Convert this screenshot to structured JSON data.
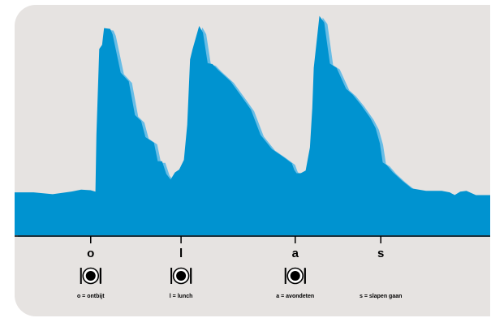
{
  "chart_data": {
    "type": "area",
    "title": "",
    "xlabel": "",
    "ylabel": "",
    "grid": false,
    "legend": "below axis",
    "colors": {
      "fill": "#0093d0",
      "shadow": "#68bde6",
      "axis": "#000000",
      "background": "#e6e3e1"
    },
    "x_range": [
      0,
      100
    ],
    "y_range": [
      0,
      100
    ],
    "series": [
      {
        "x": [
          0,
          4,
          8,
          12,
          14,
          16,
          17,
          17.2,
          17.8,
          18.4,
          18.8,
          20.1,
          20.6,
          22.3,
          23.8,
          24,
          25.3,
          26.6,
          27.5,
          29.3,
          30.1,
          31,
          31.9,
          32.8,
          33.7,
          34.6,
          35.6,
          36.3,
          36.9,
          37.4,
          38.8,
          39.6,
          40.6,
          41.6,
          42.8,
          45.4,
          47.7,
          49.7,
          51.7,
          54.1,
          56.4,
          58.3,
          58.8,
          59.3,
          60.2,
          61.2,
          62.1,
          62.6,
          62.9,
          64.1,
          65.1,
          66.3,
          67.7,
          69.7,
          71.1,
          72.8,
          74.8,
          75.9,
          76.8,
          77.4,
          78.2,
          79.5,
          81.5,
          83.5,
          86.5,
          89.8,
          91.5,
          92.5,
          93.7,
          95,
          97,
          100
        ],
        "y": [
          20.5,
          20.5,
          19.6,
          20.9,
          21.8,
          21.5,
          20.8,
          48,
          89,
          91,
          99,
          98.6,
          96,
          77.7,
          74,
          73.6,
          57.4,
          54.6,
          46.9,
          44.2,
          35.4,
          35.4,
          29.3,
          26.6,
          30,
          31.4,
          36,
          52.8,
          84,
          88.8,
          100,
          96.8,
          82.2,
          81.8,
          79,
          73.6,
          66.4,
          60,
          48,
          41.2,
          37.6,
          34.4,
          31.2,
          29.6,
          29.7,
          30.9,
          42,
          60.8,
          80,
          104.8,
          101.6,
          82,
          80,
          70,
          67.2,
          62.4,
          56,
          51.2,
          44,
          34.8,
          33.6,
          30.2,
          26,
          22.4,
          21.2,
          21.2,
          20.5,
          19.2,
          20.8,
          21.2,
          19.2,
          19.2
        ]
      }
    ],
    "ticks": [
      {
        "x": 16,
        "label": "o",
        "caption": "o = ontbijt",
        "plate": true
      },
      {
        "x": 35,
        "label": "l",
        "caption": "l = lunch",
        "plate": true
      },
      {
        "x": 59,
        "label": "a",
        "caption": "a = avondeten",
        "plate": true
      },
      {
        "x": 77,
        "label": "s",
        "caption": "s = slapen gaan",
        "plate": false
      }
    ]
  }
}
